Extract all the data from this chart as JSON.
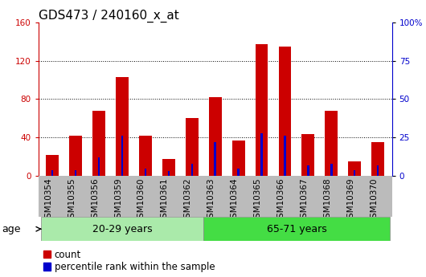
{
  "title": "GDS473 / 240160_x_at",
  "samples": [
    "GSM10354",
    "GSM10355",
    "GSM10356",
    "GSM10359",
    "GSM10360",
    "GSM10361",
    "GSM10362",
    "GSM10363",
    "GSM10364",
    "GSM10365",
    "GSM10366",
    "GSM10367",
    "GSM10368",
    "GSM10369",
    "GSM10370"
  ],
  "counts": [
    22,
    42,
    68,
    103,
    42,
    18,
    60,
    82,
    37,
    137,
    135,
    44,
    68,
    15,
    35
  ],
  "percentiles": [
    4,
    4,
    12,
    26,
    5,
    3,
    8,
    22,
    5,
    28,
    26,
    7,
    8,
    4,
    7
  ],
  "groups": [
    {
      "label": "20-29 years",
      "start": 0,
      "end": 7,
      "color": "#aaeaaa"
    },
    {
      "label": "65-71 years",
      "start": 7,
      "end": 15,
      "color": "#44dd44"
    }
  ],
  "ylim_left": [
    0,
    160
  ],
  "ylim_right": [
    0,
    100
  ],
  "yticks_left": [
    0,
    40,
    80,
    120,
    160
  ],
  "yticks_right": [
    0,
    25,
    50,
    75,
    100
  ],
  "ytick_labels_right": [
    "0",
    "25",
    "50",
    "75",
    "100%"
  ],
  "count_color": "#cc0000",
  "percentile_color": "#0000cc",
  "bar_width": 0.55,
  "blue_bar_width": 0.08,
  "age_label": "age",
  "legend_count": "count",
  "legend_percentile": "percentile rank within the sample",
  "grid_color": "#000000",
  "title_fontsize": 11,
  "tick_fontsize": 7.5,
  "label_fontsize": 8.5,
  "axis_color_left": "#cc0000",
  "axis_color_right": "#0000cc",
  "xtick_bg": "#bbbbbb",
  "dotted_lines": [
    40,
    80,
    120
  ]
}
